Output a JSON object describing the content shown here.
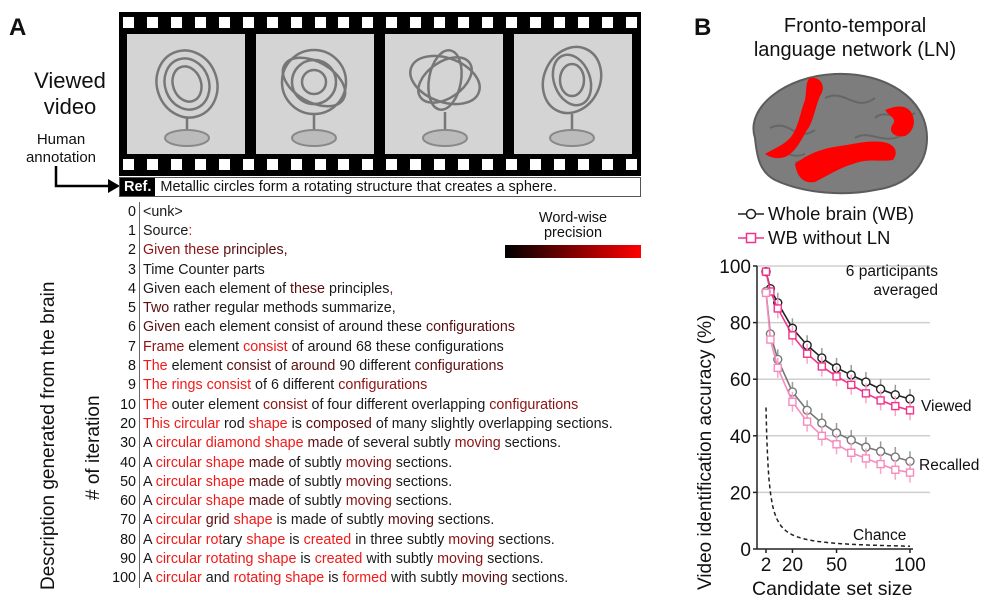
{
  "panelA": {
    "letter": "A",
    "viewed_label_line1": "Viewed",
    "viewed_label_line2": "video",
    "human_label_line1": "Human",
    "human_label_line2": "annotation",
    "ref_tag": "Ref.",
    "ref_text": "Metallic circles form a rotating structure that creates a sphere.",
    "ylabel_outer": "Description generated from the brain",
    "ylabel_inner": "# of iteration",
    "colorbar_title_line1": "Word-wise",
    "colorbar_title_line2": "precision",
    "colorbar": {
      "from": "#000000",
      "to": "#ff0000"
    },
    "precision_colors": {
      "w0": "#1a1a1a",
      "w1": "#5a0f10",
      "w2": "#8b1414",
      "w3": "#f01a1a"
    },
    "rows": [
      {
        "iter": "0",
        "words": [
          [
            "<unk>",
            0
          ]
        ]
      },
      {
        "iter": "1",
        "words": [
          [
            "Source",
            0
          ],
          [
            ":",
            3
          ]
        ]
      },
      {
        "iter": "2",
        "words": [
          [
            "Given these",
            2
          ],
          [
            " principles,",
            1
          ]
        ]
      },
      {
        "iter": "3",
        "words": [
          [
            "Time Counter parts",
            0
          ]
        ]
      },
      {
        "iter": "4",
        "words": [
          [
            "Given each element of ",
            0
          ],
          [
            "these",
            1
          ],
          [
            " principles",
            0
          ],
          [
            ",",
            2
          ]
        ]
      },
      {
        "iter": "5",
        "words": [
          [
            "Two",
            1
          ],
          [
            " rather regular methods summarize,",
            0
          ]
        ]
      },
      {
        "iter": "6",
        "words": [
          [
            "Given",
            1
          ],
          [
            " each element consist of around these ",
            0
          ],
          [
            "configurations",
            1
          ]
        ]
      },
      {
        "iter": "7",
        "words": [
          [
            "Frame",
            2
          ],
          [
            " element ",
            0
          ],
          [
            "consist",
            3
          ],
          [
            " of around 68 these configurations",
            0
          ]
        ]
      },
      {
        "iter": "8",
        "words": [
          [
            "The",
            3
          ],
          [
            " element ",
            0
          ],
          [
            "consist",
            1
          ],
          [
            " of ",
            0
          ],
          [
            "around",
            1
          ],
          [
            " 90 different ",
            0
          ],
          [
            "configurations",
            1
          ]
        ]
      },
      {
        "iter": "9",
        "words": [
          [
            "The rings consist",
            3
          ],
          [
            " of 6 different ",
            0
          ],
          [
            "configurations",
            2
          ]
        ]
      },
      {
        "iter": "10",
        "words": [
          [
            "The",
            3
          ],
          [
            " outer element ",
            0
          ],
          [
            "consist",
            2
          ],
          [
            " of four different overlapping ",
            0
          ],
          [
            "configurations",
            2
          ]
        ]
      },
      {
        "iter": "20",
        "words": [
          [
            "This circular",
            3
          ],
          [
            " rod ",
            0
          ],
          [
            "shape",
            3
          ],
          [
            " is ",
            0
          ],
          [
            "composed",
            1
          ],
          [
            " of many slightly overlapping sections.",
            0
          ]
        ]
      },
      {
        "iter": "30",
        "words": [
          [
            "A ",
            0
          ],
          [
            "circular diamond shape",
            3
          ],
          [
            " made",
            1
          ],
          [
            " of several subtly ",
            0
          ],
          [
            "moving",
            2
          ],
          [
            " sections.",
            0
          ]
        ]
      },
      {
        "iter": "40",
        "words": [
          [
            "A ",
            0
          ],
          [
            "circular shape",
            3
          ],
          [
            " made",
            1
          ],
          [
            " of subtly ",
            0
          ],
          [
            "moving",
            2
          ],
          [
            " sections.",
            0
          ]
        ]
      },
      {
        "iter": "50",
        "words": [
          [
            "A ",
            0
          ],
          [
            "circular shape",
            3
          ],
          [
            " made",
            1
          ],
          [
            " of subtly ",
            0
          ],
          [
            "moving",
            2
          ],
          [
            " sections.",
            0
          ]
        ]
      },
      {
        "iter": "60",
        "words": [
          [
            "A ",
            0
          ],
          [
            "circular shape",
            3
          ],
          [
            " made",
            1
          ],
          [
            " of subtly ",
            0
          ],
          [
            "moving",
            2
          ],
          [
            " sections.",
            0
          ]
        ]
      },
      {
        "iter": "70",
        "words": [
          [
            "A ",
            0
          ],
          [
            "circular",
            3
          ],
          [
            " grid ",
            1
          ],
          [
            "shape",
            3
          ],
          [
            " is made of subtly ",
            0
          ],
          [
            "moving",
            1
          ],
          [
            " sections.",
            0
          ]
        ]
      },
      {
        "iter": "80",
        "words": [
          [
            "A ",
            0
          ],
          [
            "circular rot",
            3
          ],
          [
            "ary ",
            0
          ],
          [
            "shape",
            3
          ],
          [
            " is ",
            0
          ],
          [
            "created",
            3
          ],
          [
            " in three subtly ",
            0
          ],
          [
            "moving",
            2
          ],
          [
            " sections.",
            0
          ]
        ]
      },
      {
        "iter": "90",
        "words": [
          [
            "A ",
            0
          ],
          [
            "circular rotating shape",
            3
          ],
          [
            " is ",
            0
          ],
          [
            "created",
            3
          ],
          [
            " with subtly ",
            0
          ],
          [
            "moving",
            2
          ],
          [
            " sections.",
            0
          ]
        ]
      },
      {
        "iter": "100",
        "words": [
          [
            "A ",
            0
          ],
          [
            "circular",
            3
          ],
          [
            " and ",
            0
          ],
          [
            "rotating shape",
            3
          ],
          [
            " is ",
            0
          ],
          [
            "formed",
            3
          ],
          [
            " with subtly ",
            0
          ],
          [
            "moving",
            1
          ],
          [
            " sections.",
            0
          ]
        ]
      }
    ]
  },
  "panelB": {
    "letter": "B",
    "title_line1": "Fronto-temporal",
    "title_line2": "language network (LN)",
    "legend": [
      {
        "label": "Whole brain (WB)",
        "color": "#222222",
        "marker": "circle"
      },
      {
        "label": "WB without LN",
        "color": "#f0338a",
        "marker": "square"
      }
    ],
    "annotation_line1": "6 participants",
    "annotation_line2": "averaged",
    "label_viewed": "Viewed",
    "label_recalled": "Recalled",
    "label_chance": "Chance",
    "ylabel": "Video identification accuracy (%)",
    "xlabel": "Candidate set size",
    "yticks": [
      "0",
      "20",
      "40",
      "60",
      "80",
      "100"
    ],
    "xticks": [
      "2",
      "20",
      "50",
      "100"
    ]
  },
  "chart_data": {
    "type": "line",
    "title": "Fronto-temporal language network (LN)",
    "xlabel": "Candidate set size",
    "ylabel": "Video identification accuracy (%)",
    "ylim": [
      0,
      100
    ],
    "xlim": [
      2,
      100
    ],
    "xticks": [
      2,
      20,
      50,
      100
    ],
    "yticks": [
      0,
      20,
      40,
      60,
      80,
      100
    ],
    "grid": "horizontal",
    "annotation": "6 participants averaged",
    "x": [
      2,
      5,
      10,
      20,
      30,
      40,
      50,
      60,
      70,
      80,
      90,
      100
    ],
    "series": [
      {
        "name": "Whole brain (WB) - Viewed",
        "color": "#222222",
        "values": [
          98,
          92,
          87,
          78,
          72,
          67.5,
          64,
          61.5,
          59,
          56.5,
          54.5,
          53
        ]
      },
      {
        "name": "WB without LN - Viewed",
        "color": "#f0338a",
        "values": [
          98,
          91,
          85,
          75.5,
          69,
          64.5,
          61,
          58,
          55,
          52.5,
          50.5,
          49
        ]
      },
      {
        "name": "Whole brain (WB) - Recalled",
        "color": "#777777",
        "values": [
          91,
          76,
          67,
          55.5,
          49,
          44.5,
          41,
          38.5,
          36,
          34.5,
          32.5,
          31
        ]
      },
      {
        "name": "WB without LN - Recalled",
        "color": "#f58bbd",
        "values": [
          90.5,
          74,
          64,
          52,
          45,
          40,
          37,
          34,
          32,
          30,
          28,
          27
        ]
      },
      {
        "name": "Chance",
        "color": "#222222",
        "style": "dashed",
        "formula": "100/n"
      }
    ]
  }
}
